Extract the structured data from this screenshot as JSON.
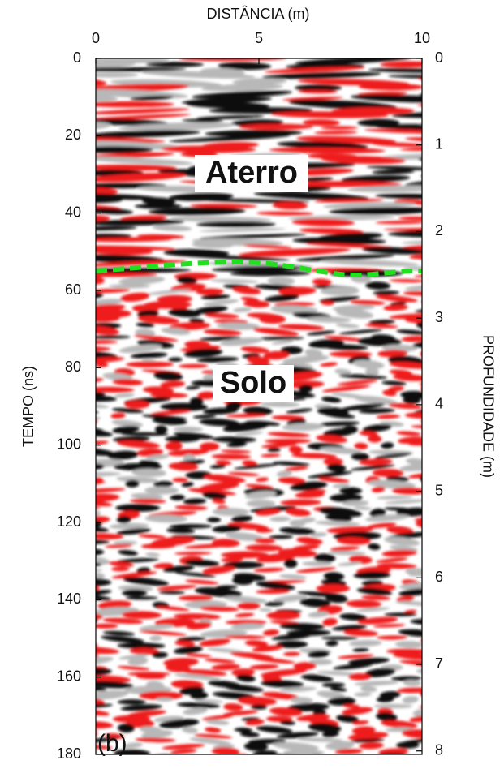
{
  "chart_data": {
    "type": "radargram",
    "x_label": "DISTÂNCIA (m)",
    "y_label": "TEMPO (ns)",
    "y2_label": "PROFUNDIDADE (m)",
    "xlim": [
      0,
      10
    ],
    "xticks": [
      0,
      5,
      10
    ],
    "ylim": [
      0,
      180
    ],
    "yticks": [
      0,
      20,
      40,
      60,
      80,
      100,
      120,
      140,
      160,
      180
    ],
    "y_inverted": true,
    "y2lim": [
      0,
      8.04
    ],
    "y2ticks": [
      0,
      1,
      2,
      3,
      4,
      5,
      6,
      7,
      8
    ],
    "annotations": [
      "Aterro",
      "Solo"
    ],
    "panel_label": "(b)"
  }
}
